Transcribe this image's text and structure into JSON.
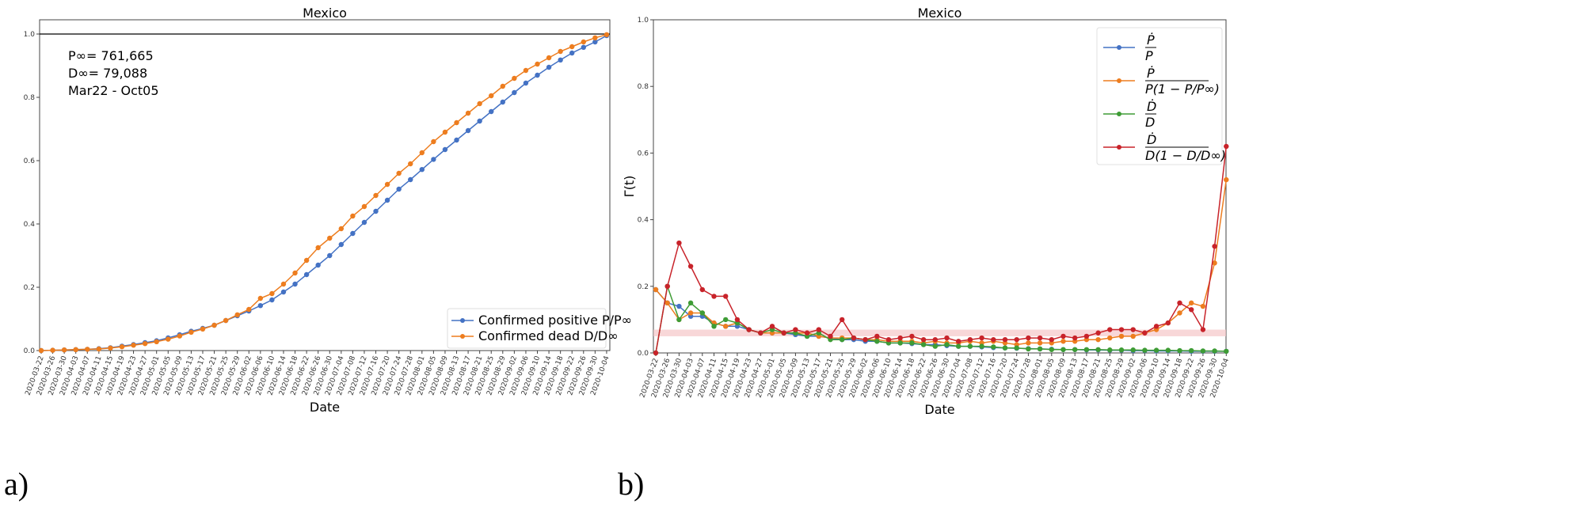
{
  "colors": {
    "blue": "#4472c4",
    "orange": "#ed7d1f",
    "green": "#3e9c35",
    "red": "#c8232a",
    "band": "#f5c6c8"
  },
  "tick_dates": [
    "2020-03-22",
    "2020-03-26",
    "2020-03-30",
    "2020-04-03",
    "2020-04-07",
    "2020-04-11",
    "2020-04-15",
    "2020-04-19",
    "2020-04-23",
    "2020-04-27",
    "2020-05-01",
    "2020-05-05",
    "2020-05-09",
    "2020-05-13",
    "2020-05-17",
    "2020-05-21",
    "2020-05-25",
    "2020-05-29",
    "2020-06-02",
    "2020-06-06",
    "2020-06-10",
    "2020-06-14",
    "2020-06-18",
    "2020-06-22",
    "2020-06-26",
    "2020-06-30",
    "2020-07-04",
    "2020-07-08",
    "2020-07-12",
    "2020-07-16",
    "2020-07-20",
    "2020-07-24",
    "2020-07-28",
    "2020-08-01",
    "2020-08-05",
    "2020-08-09",
    "2020-08-13",
    "2020-08-17",
    "2020-08-21",
    "2020-08-25",
    "2020-08-29",
    "2020-09-02",
    "2020-09-06",
    "2020-09-10",
    "2020-09-14",
    "2020-09-18",
    "2020-09-22",
    "2020-09-26",
    "2020-09-30",
    "2020-10-04"
  ],
  "panels": {
    "a": "a)",
    "b": "b)"
  },
  "chart_data": [
    {
      "type": "line",
      "title": "Mexico",
      "xlabel": "Date",
      "ylabel": "",
      "ylim": [
        0,
        1.045
      ],
      "yticks": [
        "0.0",
        "0.2",
        "0.4",
        "0.6",
        "0.8",
        "1.0"
      ],
      "hline": 1.0,
      "legend": "bottom-right",
      "annotations": [
        "P∞= 761,665",
        "D∞= 79,088",
        "Mar22 - Oct05"
      ],
      "series": [
        {
          "name": "Confirmed positive P/P∞",
          "color": "blue",
          "values": [
            0,
            0.001,
            0.002,
            0.003,
            0.004,
            0.006,
            0.009,
            0.014,
            0.019,
            0.025,
            0.031,
            0.04,
            0.05,
            0.061,
            0.07,
            0.08,
            0.095,
            0.11,
            0.125,
            0.142,
            0.16,
            0.185,
            0.21,
            0.24,
            0.27,
            0.3,
            0.335,
            0.37,
            0.405,
            0.44,
            0.475,
            0.51,
            0.54,
            0.572,
            0.604,
            0.635,
            0.665,
            0.695,
            0.725,
            0.755,
            0.785,
            0.815,
            0.845,
            0.87,
            0.895,
            0.918,
            0.94,
            0.958,
            0.975,
            0.995
          ]
        },
        {
          "name": "Confirmed dead D/D∞",
          "color": "orange",
          "values": [
            0,
            0.001,
            0.002,
            0.003,
            0.004,
            0.005,
            0.008,
            0.012,
            0.017,
            0.022,
            0.028,
            0.036,
            0.046,
            0.058,
            0.068,
            0.08,
            0.095,
            0.113,
            0.13,
            0.165,
            0.18,
            0.21,
            0.245,
            0.285,
            0.325,
            0.355,
            0.385,
            0.425,
            0.455,
            0.49,
            0.525,
            0.56,
            0.59,
            0.625,
            0.66,
            0.69,
            0.72,
            0.75,
            0.78,
            0.805,
            0.835,
            0.86,
            0.885,
            0.905,
            0.925,
            0.945,
            0.96,
            0.975,
            0.988,
            0.998
          ]
        }
      ]
    },
    {
      "type": "line",
      "title": "Mexico",
      "xlabel": "Date",
      "ylabel": "Γ(t)",
      "ylim": [
        0,
        1.0
      ],
      "yticks": [
        "0.0",
        "0.2",
        "0.4",
        "0.6",
        "0.8",
        "1.0"
      ],
      "band": [
        0.05,
        0.07
      ],
      "legend": "top-right",
      "series": [
        {
          "name": "Ṗ/P",
          "num": "Ṗ",
          "den": "P",
          "color": "blue",
          "values": [
            0.19,
            0.15,
            0.14,
            0.11,
            0.11,
            0.09,
            0.08,
            0.08,
            0.07,
            0.06,
            0.06,
            0.06,
            0.055,
            0.05,
            0.05,
            0.045,
            0.04,
            0.04,
            0.035,
            0.035,
            0.03,
            0.03,
            0.028,
            0.025,
            0.025,
            0.022,
            0.02,
            0.02,
            0.018,
            0.016,
            0.015,
            0.014,
            0.013,
            0.012,
            0.011,
            0.01,
            0.01,
            0.009,
            0.009,
            0.008,
            0.008,
            0.007,
            0.007,
            0.006,
            0.006,
            0.006,
            0.005,
            0.005,
            0.005,
            0.005
          ]
        },
        {
          "name": "Ṗ/P(1−P/P∞)",
          "num": "Ṗ",
          "den": "P(1 − P/P∞)",
          "color": "orange",
          "values": [
            0.19,
            0.15,
            0.1,
            0.12,
            0.12,
            0.09,
            0.08,
            0.09,
            0.07,
            0.06,
            0.06,
            0.06,
            0.06,
            0.06,
            0.05,
            0.045,
            0.045,
            0.045,
            0.04,
            0.04,
            0.035,
            0.035,
            0.035,
            0.03,
            0.035,
            0.03,
            0.03,
            0.035,
            0.03,
            0.035,
            0.03,
            0.025,
            0.03,
            0.03,
            0.03,
            0.035,
            0.035,
            0.04,
            0.04,
            0.045,
            0.05,
            0.05,
            0.06,
            0.07,
            0.09,
            0.12,
            0.15,
            0.14,
            0.27,
            0.52
          ]
        },
        {
          "name": "Ḋ/D",
          "num": "Ḋ",
          "den": "D",
          "color": "green",
          "values": [
            0,
            0.2,
            0.1,
            0.15,
            0.12,
            0.08,
            0.1,
            0.09,
            0.07,
            0.06,
            0.07,
            0.06,
            0.06,
            0.05,
            0.06,
            0.04,
            0.04,
            0.045,
            0.04,
            0.035,
            0.03,
            0.03,
            0.03,
            0.025,
            0.02,
            0.025,
            0.02,
            0.02,
            0.02,
            0.018,
            0.015,
            0.015,
            0.012,
            0.012,
            0.01,
            0.01,
            0.01,
            0.01,
            0.01,
            0.009,
            0.009,
            0.009,
            0.008,
            0.008,
            0.008,
            0.007,
            0.007,
            0.006,
            0.006,
            0.005
          ]
        },
        {
          "name": "Ḋ/D(1−D/D∞)",
          "num": "Ḋ",
          "den": "D(1 − D/D∞)",
          "color": "red",
          "values": [
            0,
            0.2,
            0.33,
            0.26,
            0.19,
            0.17,
            0.17,
            0.1,
            0.07,
            0.06,
            0.08,
            0.06,
            0.07,
            0.06,
            0.07,
            0.05,
            0.1,
            0.045,
            0.04,
            0.05,
            0.04,
            0.045,
            0.05,
            0.04,
            0.04,
            0.045,
            0.035,
            0.04,
            0.045,
            0.04,
            0.04,
            0.04,
            0.045,
            0.045,
            0.04,
            0.05,
            0.045,
            0.05,
            0.06,
            0.07,
            0.07,
            0.07,
            0.06,
            0.08,
            0.09,
            0.15,
            0.13,
            0.07,
            0.32,
            0.62
          ]
        }
      ]
    }
  ]
}
